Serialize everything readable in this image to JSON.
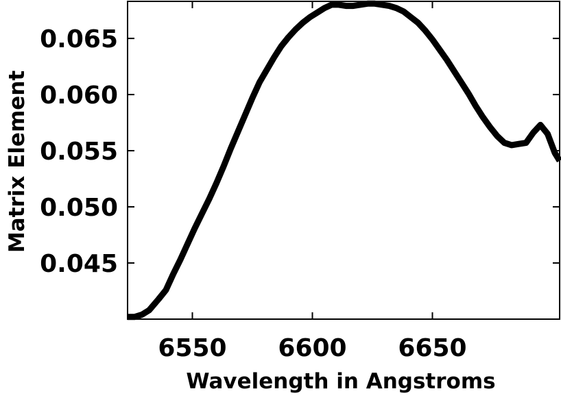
{
  "chart_data": {
    "type": "line",
    "title": "",
    "xlabel": "Wavelength in Angstroms",
    "ylabel": "Matrix Element",
    "xlim": [
      6523,
      6703
    ],
    "ylim": [
      0.04,
      0.0683
    ],
    "x_ticks": [
      6550,
      6600,
      6650
    ],
    "x_tick_labels": [
      "6550",
      "6600",
      "6650"
    ],
    "y_ticks": [
      0.045,
      0.05,
      0.055,
      0.06,
      0.065
    ],
    "y_tick_labels": [
      "0.045",
      "0.050",
      "0.055",
      "0.060",
      "0.065"
    ],
    "grid": false,
    "line_color": "#000000",
    "series": [
      {
        "x": [
          6523,
          6526,
          6529,
          6532,
          6536,
          6539,
          6542,
          6545,
          6548,
          6551,
          6554,
          6557,
          6560,
          6563,
          6566,
          6569,
          6572,
          6575,
          6578,
          6581,
          6584,
          6587,
          6590,
          6593,
          6596,
          6599,
          6602,
          6605,
          6608,
          6611,
          6614,
          6617,
          6620,
          6623,
          6626,
          6629,
          6632,
          6635,
          6638,
          6641,
          6644,
          6647,
          6650,
          6653,
          6656,
          6659,
          6662,
          6665,
          6668,
          6671,
          6674,
          6677,
          6680,
          6683,
          6686,
          6689,
          6692,
          6695,
          6698,
          6701,
          6703
        ],
        "y": [
          0.0402,
          0.0402,
          0.0404,
          0.0408,
          0.0418,
          0.0426,
          0.044,
          0.0453,
          0.0467,
          0.0481,
          0.0494,
          0.0507,
          0.0521,
          0.0536,
          0.0552,
          0.0567,
          0.0582,
          0.0597,
          0.0611,
          0.0622,
          0.0633,
          0.0643,
          0.0651,
          0.0658,
          0.0664,
          0.0669,
          0.0673,
          0.0677,
          0.068,
          0.068,
          0.0679,
          0.0679,
          0.068,
          0.0681,
          0.0681,
          0.068,
          0.0679,
          0.0677,
          0.0674,
          0.0669,
          0.0664,
          0.0657,
          0.0649,
          0.064,
          0.0631,
          0.0621,
          0.0611,
          0.0601,
          0.059,
          0.058,
          0.0571,
          0.0563,
          0.0557,
          0.0555,
          0.0556,
          0.0557,
          0.0566,
          0.0573,
          0.0565,
          0.0548,
          0.0541
        ]
      }
    ]
  }
}
